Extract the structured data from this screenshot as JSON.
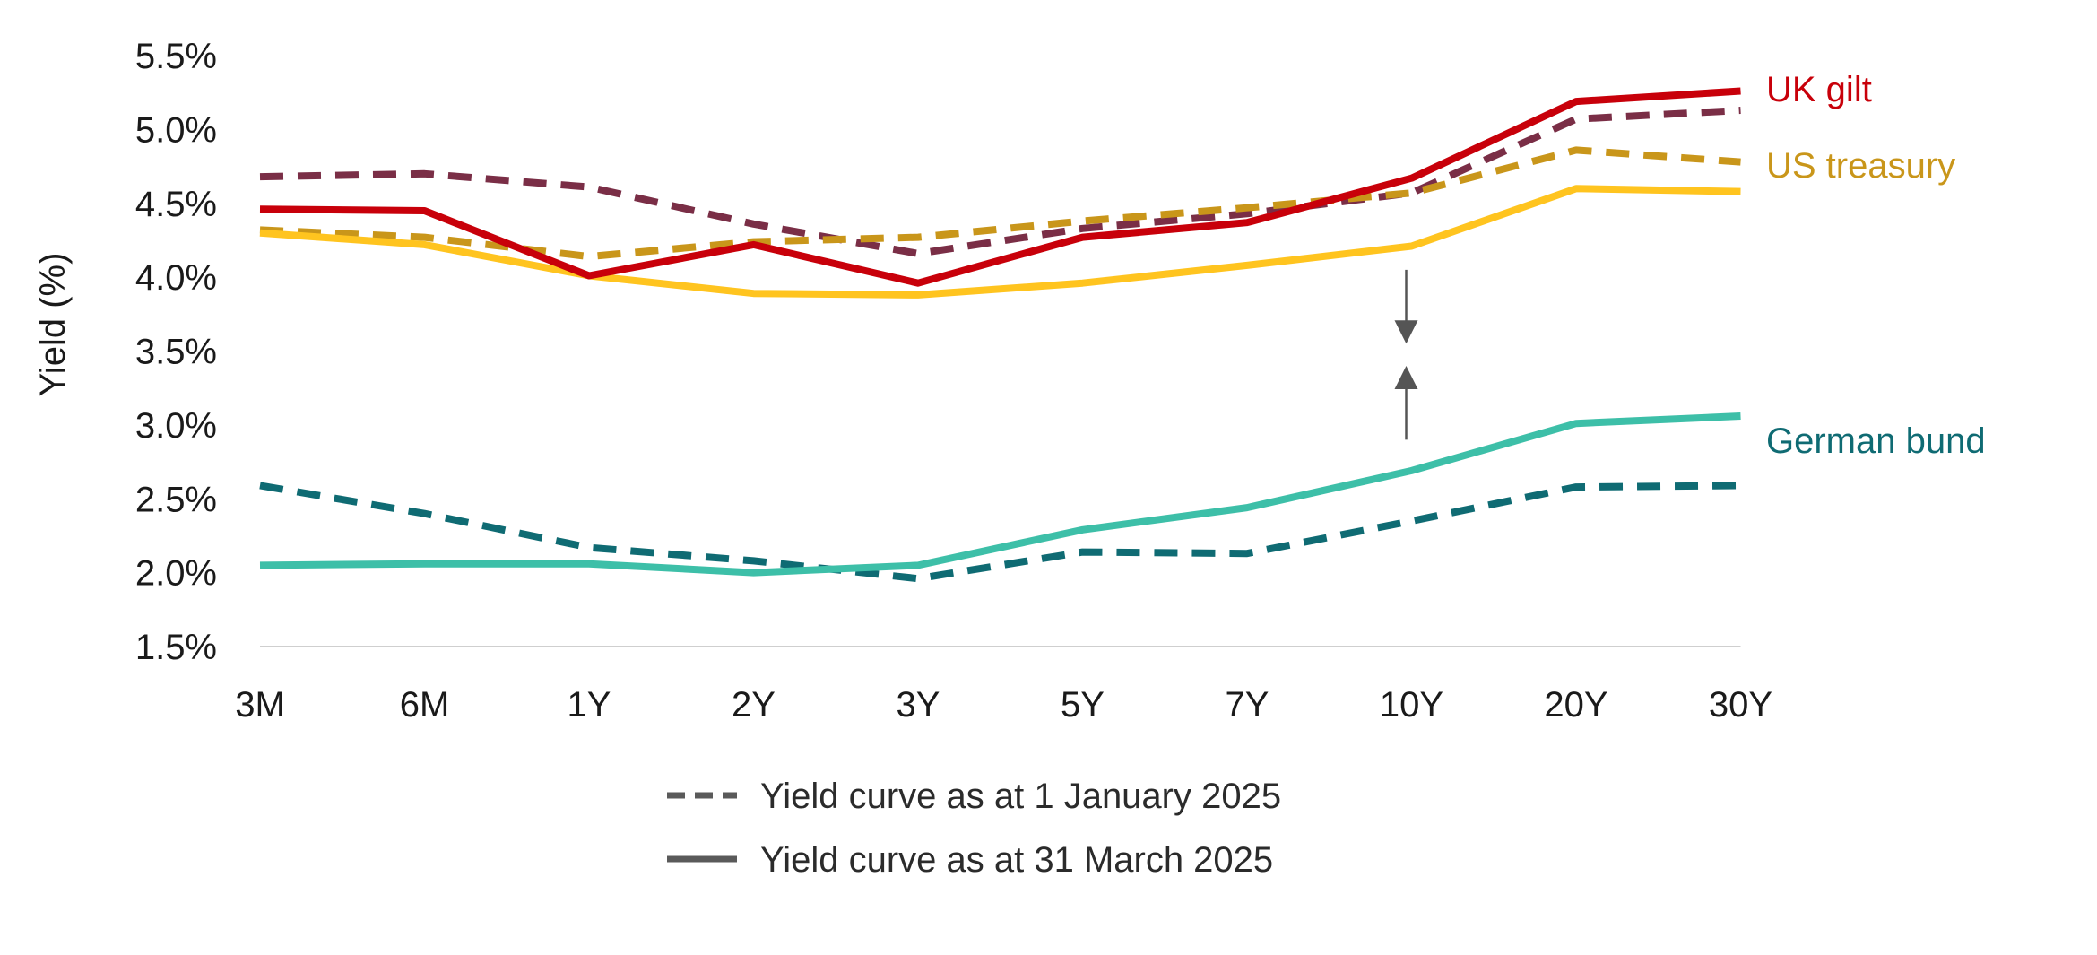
{
  "chart_data": {
    "type": "line",
    "title": "",
    "xlabel": "",
    "ylabel": "Yield (%)",
    "categories": [
      "3M",
      "6M",
      "1Y",
      "2Y",
      "3Y",
      "5Y",
      "7Y",
      "10Y",
      "20Y",
      "30Y"
    ],
    "ylim": [
      1.5,
      5.5
    ],
    "yticks": [
      "1.5%",
      "2.0%",
      "2.5%",
      "3.0%",
      "3.5%",
      "4.0%",
      "4.5%",
      "5.0%",
      "5.5%"
    ],
    "ytick_values": [
      1.5,
      2.0,
      2.5,
      3.0,
      3.5,
      4.0,
      4.5,
      5.0,
      5.5
    ],
    "grid": false,
    "series": [
      {
        "name": "UK gilt",
        "date": "1 January 2025",
        "style": "dashed",
        "color": "#7a2e46",
        "values": [
          4.68,
          4.7,
          4.61,
          4.36,
          4.16,
          4.33,
          4.43,
          4.57,
          5.07,
          5.13
        ]
      },
      {
        "name": "US treasury",
        "date": "1 January 2025",
        "style": "dashed",
        "color": "#c9961a",
        "values": [
          4.32,
          4.27,
          4.14,
          4.24,
          4.27,
          4.38,
          4.47,
          4.57,
          4.86,
          4.78
        ]
      },
      {
        "name": "German bund",
        "date": "1 January 2025",
        "style": "dashed",
        "color": "#0f6b73",
        "values": [
          2.59,
          2.4,
          2.17,
          2.08,
          1.96,
          2.14,
          2.13,
          2.35,
          2.58,
          2.59
        ]
      },
      {
        "name": "US treasury",
        "date": "31 March 2025",
        "style": "solid",
        "color": "#ffc41f",
        "values": [
          4.3,
          4.22,
          4.01,
          3.89,
          3.88,
          3.96,
          4.08,
          4.21,
          4.6,
          4.58
        ]
      },
      {
        "name": "UK gilt",
        "date": "31 March 2025",
        "style": "solid",
        "color": "#c8000a",
        "values": [
          4.46,
          4.45,
          4.01,
          4.22,
          3.96,
          4.27,
          4.37,
          4.67,
          5.19,
          5.26
        ]
      },
      {
        "name": "German bund",
        "date": "31 March 2025",
        "style": "solid",
        "color": "#3dbfa8",
        "values": [
          2.05,
          2.06,
          2.06,
          2.0,
          2.05,
          2.29,
          2.44,
          2.69,
          3.01,
          3.06
        ]
      }
    ],
    "series_labels": [
      {
        "text": "UK gilt",
        "color": "#c8000a"
      },
      {
        "text": "US treasury",
        "color": "#c9961a"
      },
      {
        "text": "German bund",
        "color": "#0f6b73"
      }
    ],
    "legend": {
      "placement": "bottom",
      "items": [
        {
          "label": "Yield curve as at 1 January 2025",
          "style": "dashed",
          "color": "#5a5a5a"
        },
        {
          "label": "Yield curve as at 31 March 2025",
          "style": "solid",
          "color": "#5a5a5a"
        }
      ]
    },
    "annotation": {
      "type": "converging-arrows",
      "category": "10Y",
      "from": [
        4.05,
        2.9
      ],
      "to": [
        3.55,
        3.4
      ],
      "color": "#555555"
    }
  }
}
